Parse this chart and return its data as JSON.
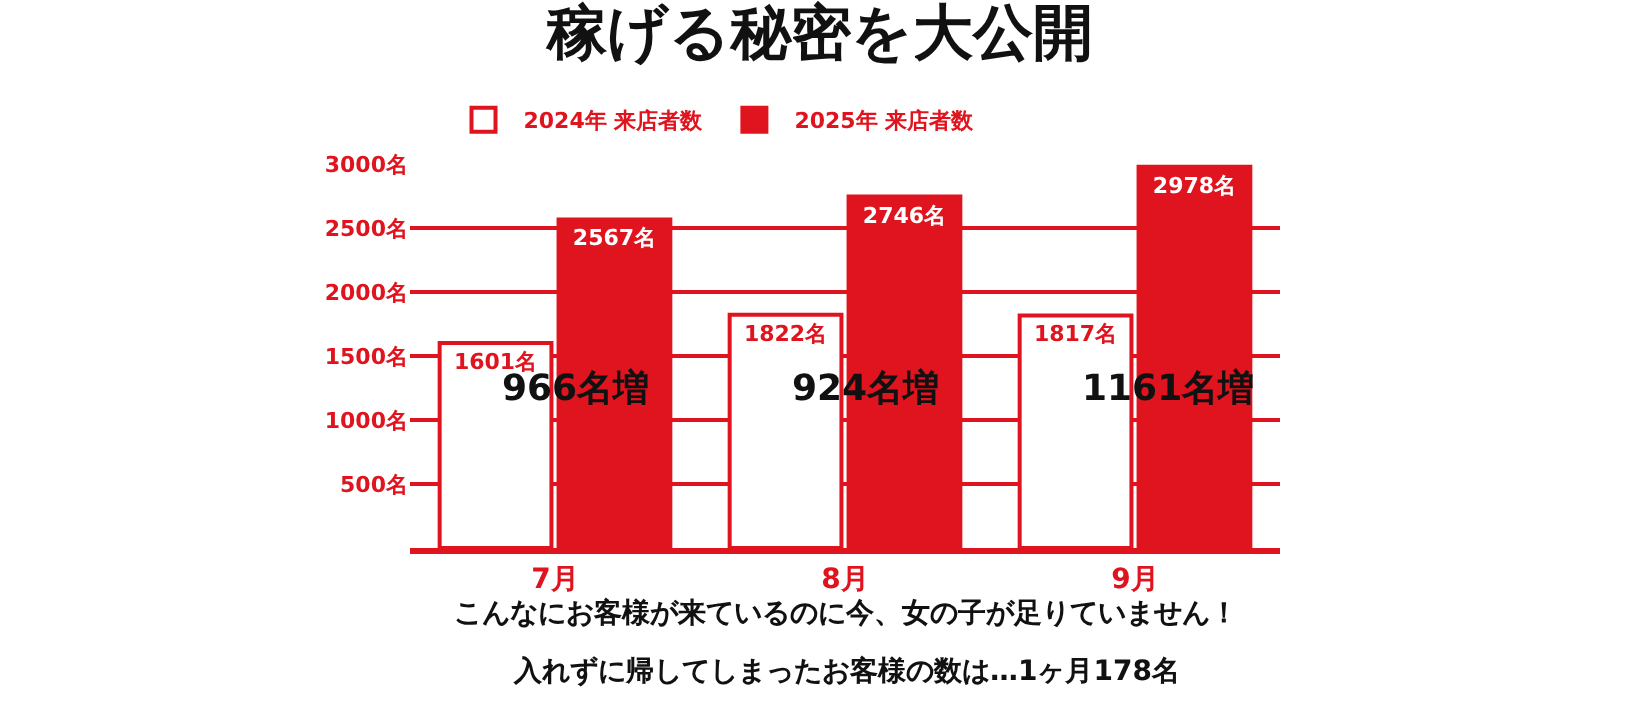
{
  "chart_data": {
    "type": "bar",
    "title": "稼げる秘密を大公開",
    "categories": [
      "7月",
      "8月",
      "9月"
    ],
    "series": [
      {
        "name": "2024年 来店者数",
        "color": "#ffffff",
        "values": [
          1601,
          1822,
          1817
        ],
        "value_labels": [
          "1601名",
          "1822名",
          "1817名"
        ]
      },
      {
        "name": "2025年 来店者数",
        "color": "#e0141e",
        "values": [
          2567,
          2746,
          2978
        ],
        "value_labels": [
          "2567名",
          "2746名",
          "2978名"
        ]
      }
    ],
    "ylim": [
      0,
      3000
    ],
    "yticks": [
      {
        "value": 500,
        "label": "500名"
      },
      {
        "value": 1000,
        "label": "1000名"
      },
      {
        "value": 1500,
        "label": "1500名"
      },
      {
        "value": 2000,
        "label": "2000名"
      },
      {
        "value": 2500,
        "label": "2500名"
      },
      {
        "value": 3000,
        "label": "3000名"
      }
    ],
    "grid": "y",
    "legend": "top",
    "annotations": [
      {
        "text": "966名増",
        "x": "7月",
        "y": 1250
      },
      {
        "text": "924名増",
        "x": "8月",
        "y": 1250
      },
      {
        "text": "1161名増",
        "x": "9月",
        "y": 1250
      },
      "こんなにお客様が来ているのに今、女の子が足りていません！",
      "入れずに帰してしまったお客様の数は…1ヶ月178名"
    ]
  }
}
